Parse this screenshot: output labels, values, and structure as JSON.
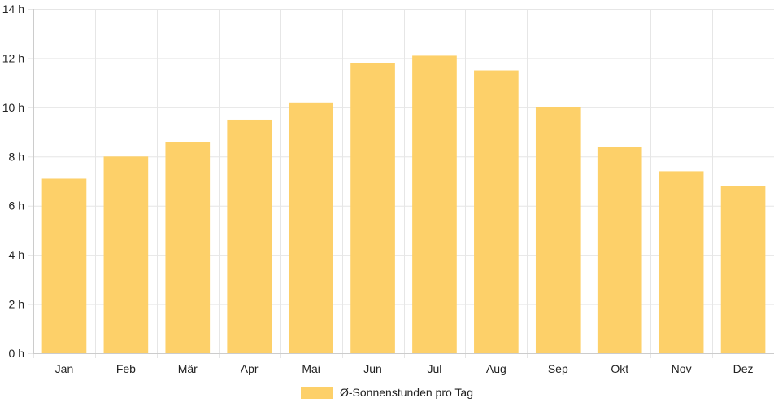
{
  "chart_data": {
    "type": "bar",
    "categories": [
      "Jan",
      "Feb",
      "Mär",
      "Apr",
      "Mai",
      "Jun",
      "Jul",
      "Aug",
      "Sep",
      "Okt",
      "Nov",
      "Dez"
    ],
    "series": [
      {
        "name": "Ø-Sonnenstunden pro Tag",
        "values": [
          7.1,
          8.0,
          8.6,
          9.5,
          10.2,
          11.8,
          12.1,
          11.5,
          10.0,
          8.4,
          7.4,
          6.8
        ]
      }
    ],
    "y_ticks": [
      "0 h",
      "2 h",
      "4 h",
      "6 h",
      "8 h",
      "10 h",
      "12 h",
      "14 h"
    ],
    "ylim": [
      0,
      14
    ],
    "y_tick_step": 2,
    "grid": true,
    "legend_position": "bottom",
    "colors": {
      "bar": "#fdd069",
      "grid": "#e6e6e6",
      "axis": "#cccccc",
      "text": "#222222"
    }
  }
}
